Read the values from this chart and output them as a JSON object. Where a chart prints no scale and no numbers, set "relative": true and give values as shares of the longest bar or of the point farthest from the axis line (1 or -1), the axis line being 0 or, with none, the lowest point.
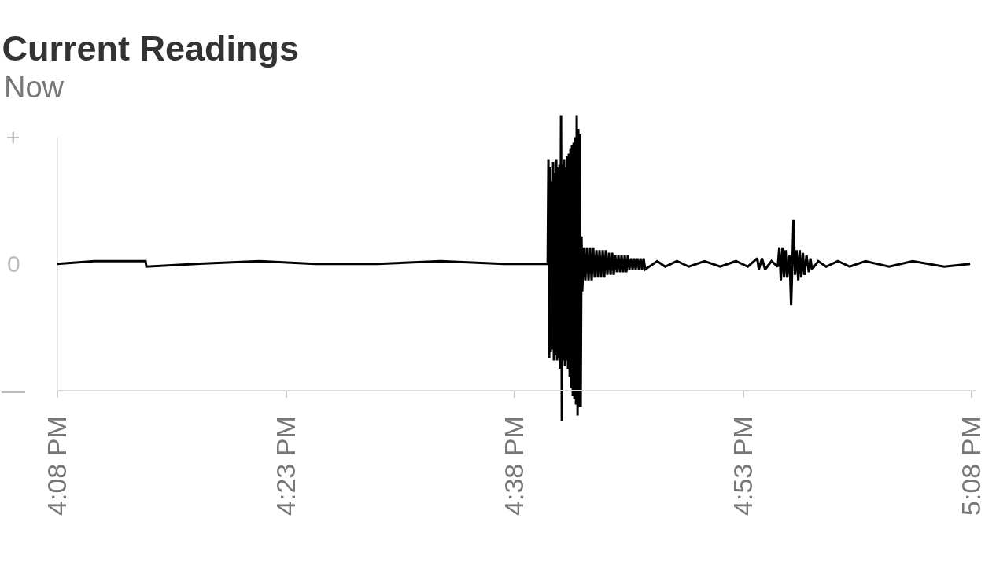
{
  "chart_data": {
    "type": "line",
    "title": "Current Readings",
    "subtitle": "Now",
    "relative": true,
    "annotations": [
      "+",
      "0",
      "—"
    ],
    "x": [
      16.1333,
      16.1738,
      16.2297,
      16.2306,
      16.2856,
      16.3545,
      16.4147,
      16.4836,
      16.5524,
      16.6213,
      16.6643,
      16.6695,
      16.6703,
      16.6712,
      16.672,
      16.6729,
      16.6738,
      16.6746,
      16.6755,
      16.6763,
      16.6772,
      16.6781,
      16.6789,
      16.6798,
      16.6806,
      16.6815,
      16.6824,
      16.6832,
      16.6841,
      16.685,
      16.6858,
      16.6867,
      16.6875,
      16.6884,
      16.6893,
      16.6901,
      16.691,
      16.6918,
      16.6927,
      16.6936,
      16.6944,
      16.6953,
      16.6961,
      16.697,
      16.6979,
      16.6987,
      16.6996,
      16.7005,
      16.7013,
      16.7022,
      16.703,
      16.7039,
      16.7048,
      16.7056,
      16.7065,
      16.7073,
      16.709,
      16.7107,
      16.7124,
      16.7142,
      16.7159,
      16.7176,
      16.7193,
      16.721,
      16.7228,
      16.7245,
      16.7262,
      16.7279,
      16.7297,
      16.7314,
      16.7331,
      16.7348,
      16.7366,
      16.7383,
      16.74,
      16.7417,
      16.7434,
      16.7452,
      16.7469,
      16.7486,
      16.7503,
      16.7521,
      16.7538,
      16.7555,
      16.7572,
      16.7589,
      16.7607,
      16.7624,
      16.7641,
      16.7658,
      16.7676,
      16.7693,
      16.771,
      16.7727,
      16.7744,
      16.7762,
      16.7894,
      16.798,
      16.8109,
      16.8239,
      16.8411,
      16.8583,
      16.8755,
      16.8884,
      16.8988,
      16.9005,
      16.9039,
      16.9074,
      16.9143,
      16.9212,
      16.9229,
      16.9246,
      16.9264,
      16.9281,
      16.9298,
      16.9315,
      16.9341,
      16.9358,
      16.9376,
      16.9384,
      16.9401,
      16.9417,
      16.9436,
      16.9452,
      16.9469,
      16.9487,
      16.9503,
      16.9526,
      16.9552,
      16.9569,
      16.9586,
      16.9655,
      16.9741,
      16.987,
      16.9999,
      17.0171,
      17.0429,
      17.0687,
      17.1032,
      17.1316
    ],
    "series": [
      {
        "color": "#000000",
        "values": [
          0.46,
          0.47,
          0.47,
          0.45,
          0.46,
          0.47,
          0.46,
          0.46,
          0.47,
          0.46,
          0.46,
          0.46,
          0.84,
          0.12,
          0.81,
          0.14,
          0.76,
          0.15,
          0.83,
          0.11,
          0.79,
          0.13,
          0.84,
          0.11,
          0.81,
          0.12,
          0.82,
          0.08,
          1,
          -0.11,
          0.82,
          0.11,
          0.84,
          0.09,
          0.81,
          0.11,
          0.85,
          0.08,
          0.86,
          0.05,
          0.88,
          0.01,
          0.89,
          -0.02,
          0.9,
          -0.03,
          0.92,
          -0.05,
          1,
          -0.09,
          0.95,
          -0.06,
          0.93,
          -0.06,
          0.56,
          0.36,
          0.52,
          0.4,
          0.52,
          0.4,
          0.52,
          0.4,
          0.52,
          0.41,
          0.51,
          0.41,
          0.51,
          0.41,
          0.51,
          0.41,
          0.51,
          0.42,
          0.5,
          0.42,
          0.5,
          0.42,
          0.49,
          0.43,
          0.49,
          0.43,
          0.49,
          0.43,
          0.49,
          0.43,
          0.49,
          0.44,
          0.48,
          0.44,
          0.48,
          0.44,
          0.48,
          0.44,
          0.48,
          0.44,
          0.48,
          0.44,
          0.47,
          0.45,
          0.47,
          0.45,
          0.47,
          0.45,
          0.47,
          0.45,
          0.48,
          0.44,
          0.48,
          0.44,
          0.47,
          0.45,
          0.52,
          0.4,
          0.52,
          0.41,
          0.51,
          0.41,
          0.49,
          0.31,
          0.51,
          0.62,
          0.42,
          0.51,
          0.4,
          0.51,
          0.41,
          0.5,
          0.42,
          0.49,
          0.43,
          0.48,
          0.44,
          0.47,
          0.45,
          0.47,
          0.45,
          0.47,
          0.45,
          0.47,
          0.45,
          0.46
        ]
      }
    ],
    "xlim": [
      16.1333,
      17.1375
    ],
    "xticks": [
      {
        "value": 16.1333,
        "label": "4:08 PM"
      },
      {
        "value": 16.3833,
        "label": "4:23 PM"
      },
      {
        "value": 16.6333,
        "label": "4:38 PM"
      },
      {
        "value": 16.8833,
        "label": "4:53 PM"
      },
      {
        "value": 17.1333,
        "label": "5:08 PM"
      }
    ]
  }
}
